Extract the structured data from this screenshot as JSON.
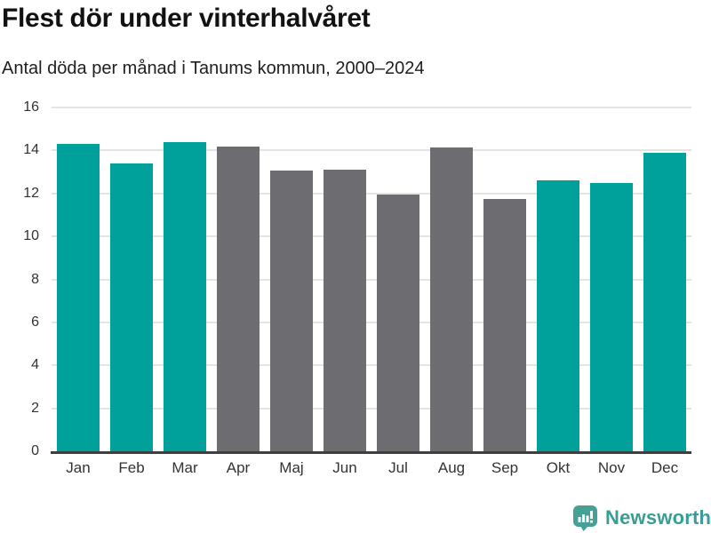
{
  "header": {
    "title": "Flest dör under vinterhalvåret",
    "subtitle": "Antal döda per månad i Tanums kommun, 2000–2024"
  },
  "chart_data": {
    "type": "bar",
    "title": "Flest dör under vinterhalvåret",
    "subtitle": "Antal döda per månad i Tanums kommun, 2000–2024",
    "categories": [
      "Jan",
      "Feb",
      "Mar",
      "Apr",
      "Maj",
      "Jun",
      "Jul",
      "Aug",
      "Sep",
      "Okt",
      "Nov",
      "Dec"
    ],
    "values": [
      14.3,
      13.4,
      14.4,
      14.2,
      13.05,
      13.1,
      11.95,
      14.15,
      11.75,
      12.6,
      12.5,
      13.9
    ],
    "bar_color_keys": [
      "highlight",
      "highlight",
      "highlight",
      "base",
      "base",
      "base",
      "base",
      "base",
      "base",
      "highlight",
      "highlight",
      "highlight"
    ],
    "colors": {
      "highlight": "#00A19B",
      "base": "#6C6C71",
      "gridline": "#E4E4E4",
      "axis_line": "#3F3F3F",
      "tick_text": "#333333"
    },
    "xlabel": "",
    "ylabel": "",
    "ylim": [
      0,
      16
    ],
    "yticks": [
      0,
      2,
      4,
      6,
      8,
      10,
      12,
      14,
      16
    ],
    "grid": "horizontal",
    "legend": "none"
  },
  "footer": {
    "brand": "Newsworthy",
    "brand_color": "#3A9D95",
    "icon_color": "#45A096"
  }
}
